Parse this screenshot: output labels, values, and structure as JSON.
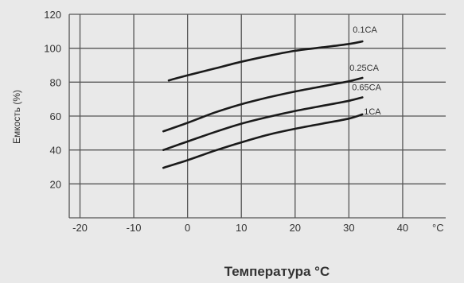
{
  "chart_data": {
    "type": "line",
    "xlabel": "Температура °C",
    "ylabel": "Емкость (%)",
    "x_unit": "°C",
    "xlim": [
      -22,
      48
    ],
    "ylim": [
      0,
      120
    ],
    "x_ticks": [
      -20,
      -10,
      0,
      10,
      20,
      30,
      40
    ],
    "y_ticks": [
      20,
      40,
      60,
      80,
      100,
      120
    ],
    "grid": true,
    "series": [
      {
        "name": "0.1CA",
        "x": [
          -3.5,
          0,
          5,
          10,
          15,
          20,
          25,
          30,
          32.5
        ],
        "y": [
          81,
          84,
          88,
          92,
          95.5,
          98.5,
          100.5,
          102.5,
          104
        ]
      },
      {
        "name": "0.25CA",
        "x": [
          -4.5,
          0,
          5,
          10,
          15,
          20,
          25,
          30,
          32.5
        ],
        "y": [
          51,
          56,
          62,
          67,
          71,
          74.5,
          77.5,
          80.5,
          82.5
        ]
      },
      {
        "name": "0.65CA",
        "x": [
          -4.5,
          0,
          5,
          10,
          15,
          20,
          25,
          30,
          32.5
        ],
        "y": [
          40,
          45,
          50.5,
          55.5,
          59.5,
          63,
          66,
          69,
          71
        ]
      },
      {
        "name": "1CA",
        "x": [
          -4.5,
          0,
          5,
          10,
          15,
          20,
          25,
          30,
          32.5
        ],
        "y": [
          29.5,
          34,
          39.5,
          44.5,
          49,
          52.5,
          55.5,
          58.5,
          61
        ]
      }
    ]
  }
}
